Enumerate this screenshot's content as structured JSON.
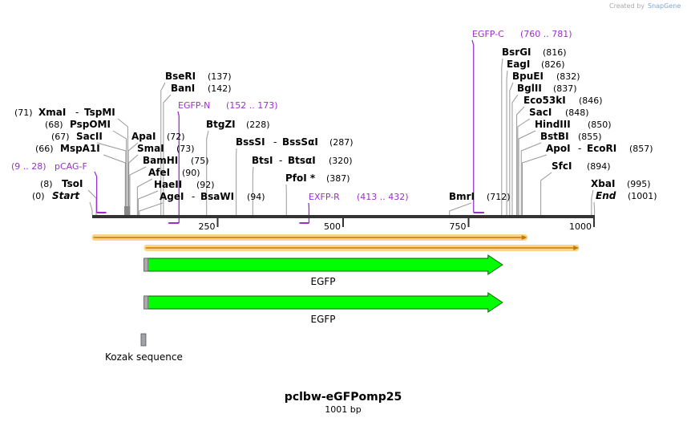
{
  "watermark": {
    "prefix": "Created by",
    "brand": "SnapGene"
  },
  "title": "pclbw-eGFPomp25",
  "subtitle": "1001 bp",
  "sequence_length": 1001,
  "ticks": [
    {
      "label": "250",
      "value": 250
    },
    {
      "label": "500",
      "value": 500
    },
    {
      "label": "750",
      "value": 750
    },
    {
      "label": "1000",
      "value": 1000
    }
  ],
  "enzymes": [
    {
      "id": "start",
      "pos": "(0)",
      "name": "Start",
      "site": 0,
      "italic": true
    },
    {
      "id": "tsoi",
      "pos": "(8)",
      "name": "TsoI",
      "site": 8
    },
    {
      "id": "mspa1i",
      "pos": "(66)",
      "name": "MspA1I",
      "site": 66
    },
    {
      "id": "sacii",
      "pos": "(67)",
      "name": "SacII",
      "site": 67
    },
    {
      "id": "pspomi",
      "pos": "(68)",
      "name": "PspOMI",
      "site": 68
    },
    {
      "id": "xmai",
      "pos": "(71)",
      "name": "XmaI",
      "name2": "TspMI",
      "site": 71
    },
    {
      "id": "apai",
      "name": "ApaI",
      "pos": "(72)",
      "site": 72
    },
    {
      "id": "smai",
      "name": "SmaI",
      "pos": "(73)",
      "site": 73
    },
    {
      "id": "bamhi",
      "name": "BamHI",
      "pos": "(75)",
      "site": 75
    },
    {
      "id": "afei",
      "name": "AfeI",
      "pos": "(90)",
      "site": 90
    },
    {
      "id": "haeii",
      "name": "HaeII",
      "pos": "(92)",
      "site": 92
    },
    {
      "id": "agei",
      "name": "AgeI",
      "name2": "BsaWI",
      "pos": "(94)",
      "site": 94
    },
    {
      "id": "bseri",
      "name": "BseRI",
      "pos": "(137)",
      "site": 137
    },
    {
      "id": "bani",
      "name": "BanI",
      "pos": "(142)",
      "site": 142
    },
    {
      "id": "btgzi",
      "name": "BtgZI",
      "pos": "(228)",
      "site": 228
    },
    {
      "id": "bsssi",
      "name": "BssSI",
      "name2": "BssSαI",
      "pos": "(287)",
      "site": 287
    },
    {
      "id": "btsi",
      "name": "BtsI",
      "name2": "BtsαI",
      "pos": "(320)",
      "site": 320
    },
    {
      "id": "pfoi",
      "name": "PfoI *",
      "pos": "(387)",
      "site": 387
    },
    {
      "id": "bmri",
      "name": "BmrI",
      "pos": "(712)",
      "site": 712
    },
    {
      "id": "bsrgi",
      "name": "BsrGI",
      "pos": "(816)",
      "site": 816
    },
    {
      "id": "eagi",
      "name": "EagI",
      "pos": "(826)",
      "site": 826
    },
    {
      "id": "bpuei",
      "name": "BpuEI",
      "pos": "(832)",
      "site": 832
    },
    {
      "id": "bglii",
      "name": "BglII",
      "pos": "(837)",
      "site": 837
    },
    {
      "id": "eco53ki",
      "name": "Eco53kI",
      "pos": "(846)",
      "site": 846
    },
    {
      "id": "saci",
      "name": "SacI",
      "pos": "(848)",
      "site": 848
    },
    {
      "id": "hindiii",
      "name": "HindIII",
      "pos": "(850)",
      "site": 850
    },
    {
      "id": "bstbi",
      "name": "BstBI",
      "pos": "(855)",
      "site": 855
    },
    {
      "id": "apoi",
      "name": "ApoI",
      "name2": "EcoRI",
      "pos": "(857)",
      "site": 857
    },
    {
      "id": "sfci",
      "name": "SfcI",
      "pos": "(894)",
      "site": 894
    },
    {
      "id": "xbai",
      "name": "XbaI",
      "pos": "(995)",
      "site": 995
    },
    {
      "id": "end",
      "name": "End",
      "pos": "(1001)",
      "site": 1001,
      "italic": true
    }
  ],
  "primers": [
    {
      "id": "pcag-f",
      "name": "pCAG-F",
      "range": "(9 .. 28)",
      "start": 9,
      "end": 28
    },
    {
      "id": "egfp-n",
      "name": "EGFP-N",
      "range": "(152 .. 173)",
      "start": 152,
      "end": 173
    },
    {
      "id": "exfp-r",
      "name": "EXFP-R",
      "range": "(413 .. 432)",
      "start": 413,
      "end": 432
    },
    {
      "id": "egfp-c",
      "name": "EGFP-C",
      "range": "(760 .. 781)",
      "start": 760,
      "end": 781
    }
  ],
  "features": [
    {
      "id": "egfp-1",
      "label": "EGFP",
      "start": 105,
      "end": 824
    },
    {
      "id": "egfp-2",
      "label": "EGFP",
      "start": 105,
      "end": 824
    },
    {
      "id": "kozak",
      "label": "Kozak sequence",
      "start": 99,
      "end": 108
    }
  ],
  "orfs": [
    {
      "id": "orf-1",
      "start": 1,
      "end": 867
    },
    {
      "id": "orf-2",
      "start": 105,
      "end": 970
    }
  ],
  "colors": {
    "primer": "#9b30c9",
    "feature_fill": "#00ff00",
    "feature_stroke": "#006400",
    "orf_glow": "#fbd38d",
    "orf_line": "#c77a00",
    "backbone": "#333333",
    "kozak": "#a0a4aa"
  }
}
